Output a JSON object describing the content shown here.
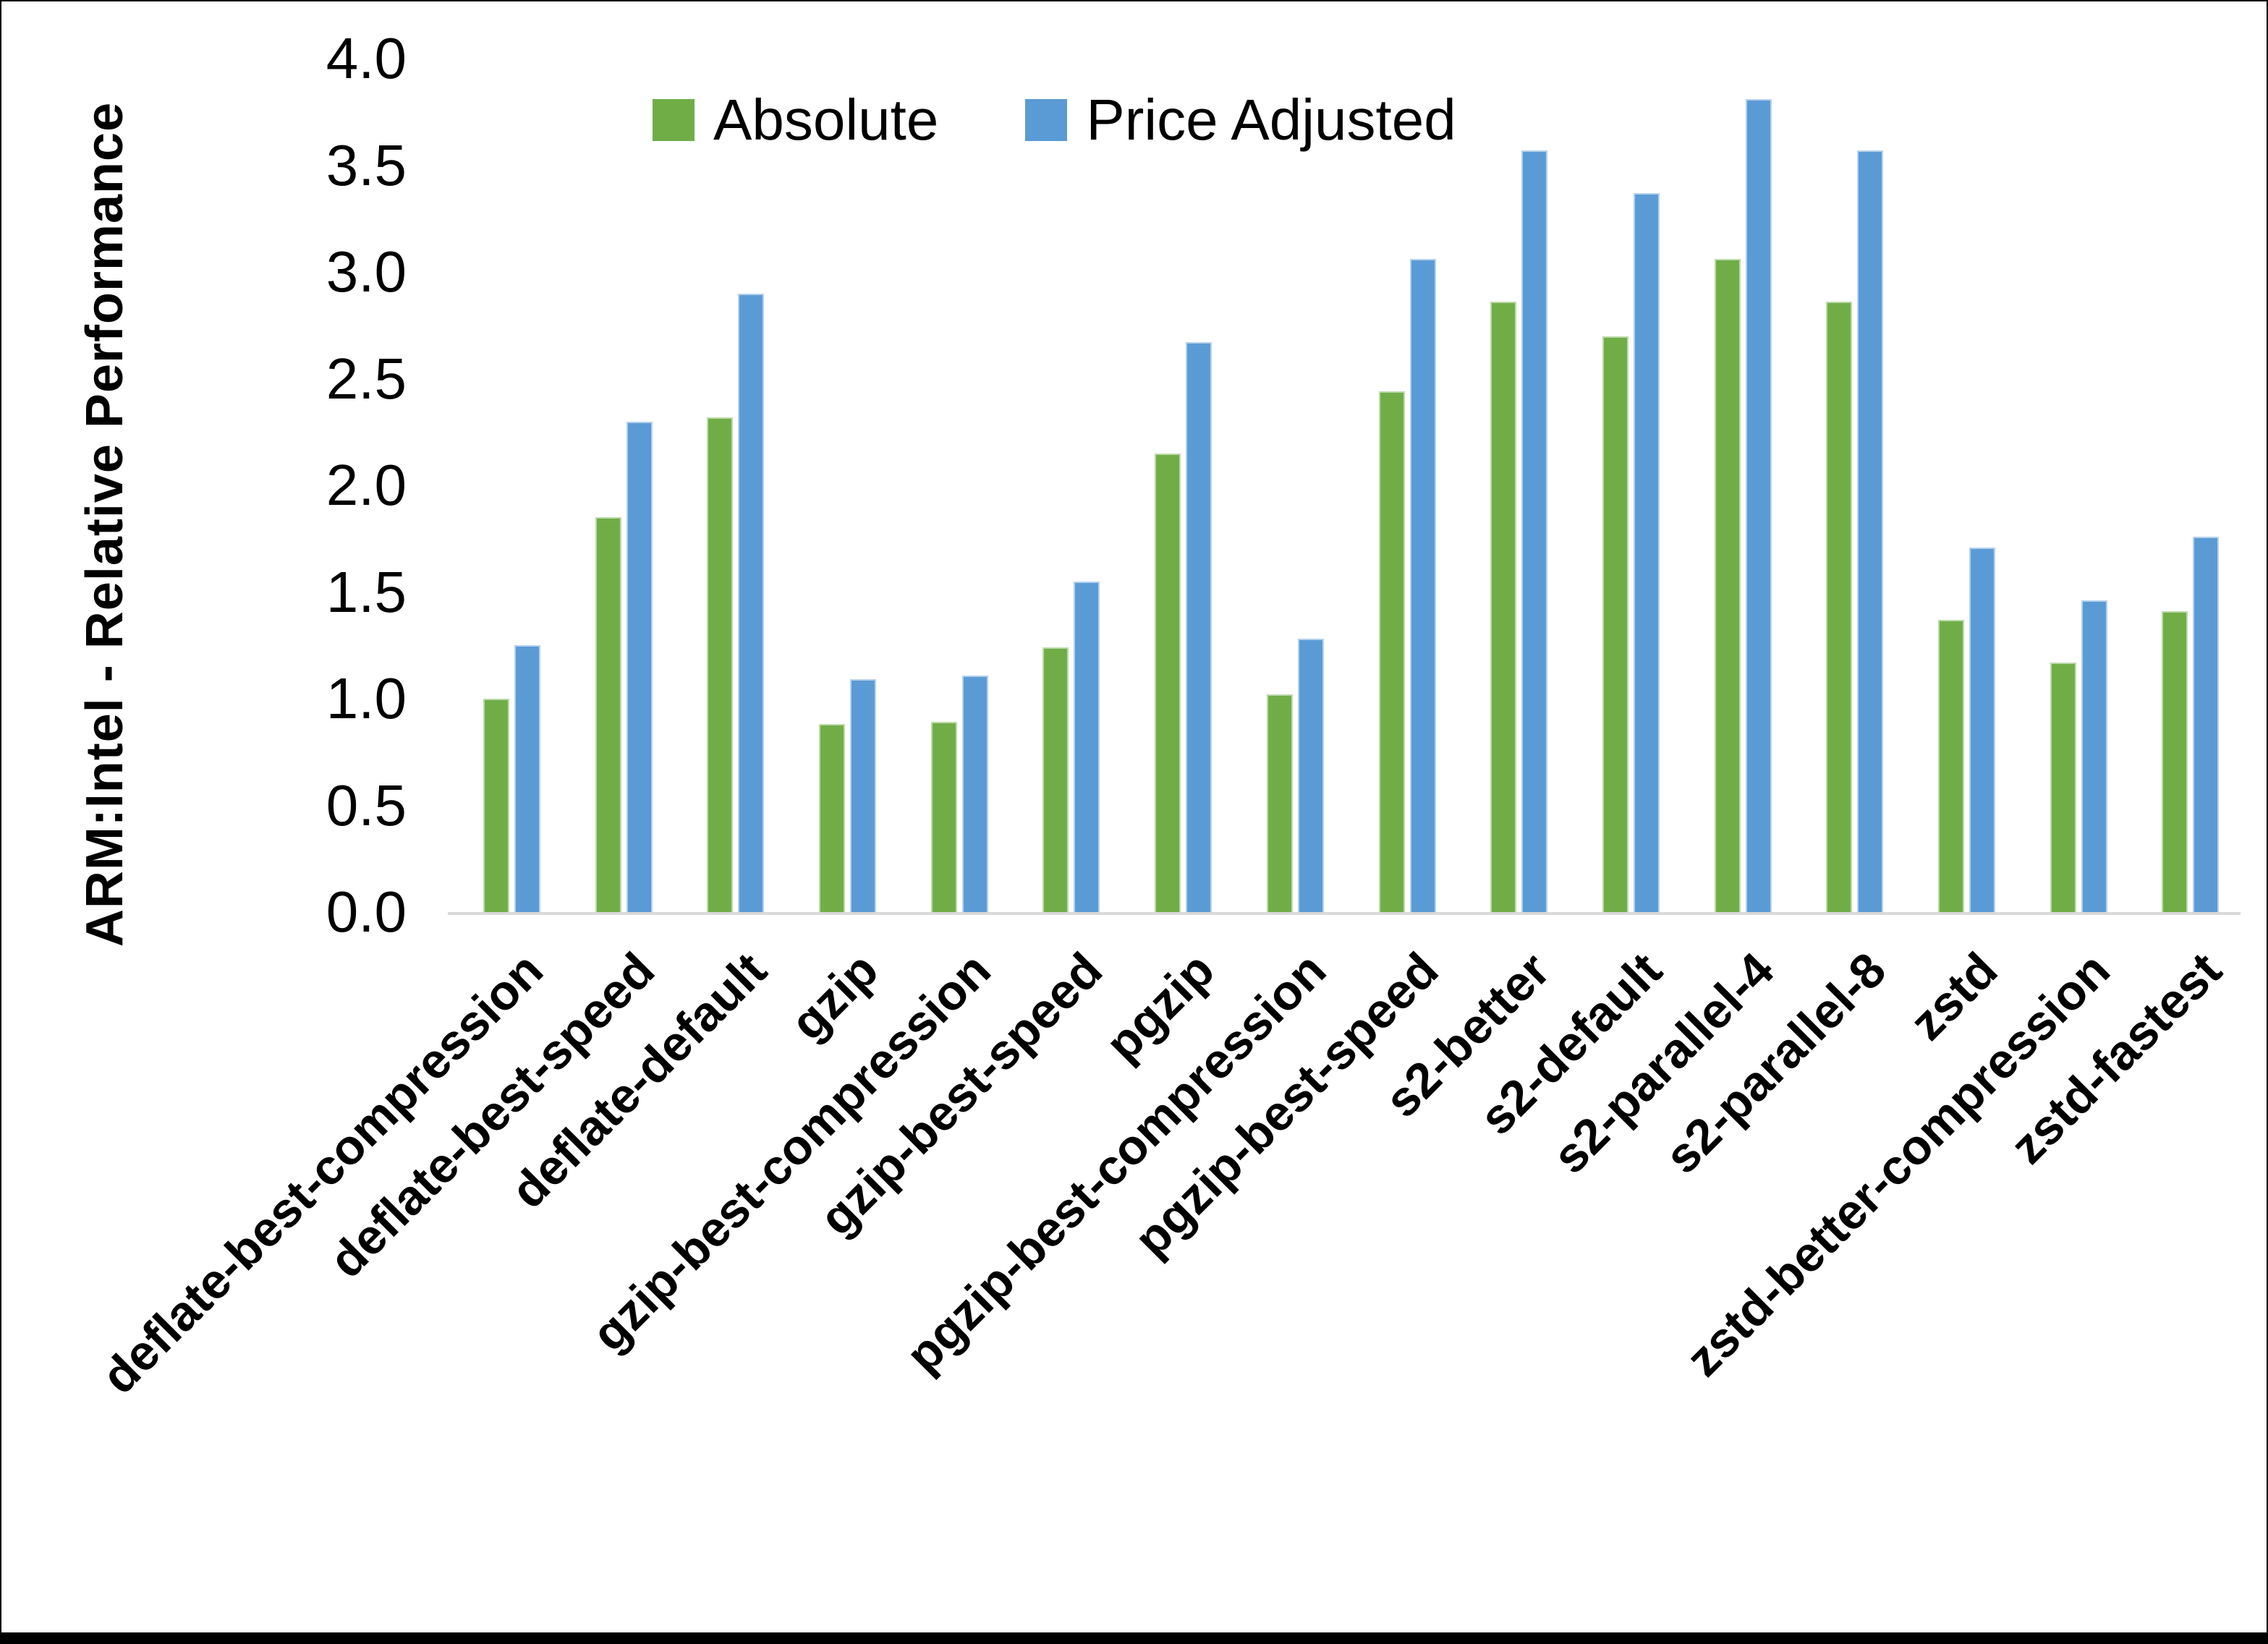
{
  "chart_data": {
    "type": "bar",
    "title": "",
    "ylabel": "ARM:Intel - Relative Performance",
    "xlabel": "",
    "ylim": [
      0.0,
      4.0
    ],
    "ytick_labels": [
      "0.0",
      "0.5",
      "1.0",
      "1.5",
      "2.0",
      "2.5",
      "3.0",
      "3.5",
      "4.0"
    ],
    "grid": false,
    "legend_position": "top-center",
    "categories": [
      "deflate-best-compression",
      "deflate-best-speed",
      "deflate-default",
      "gzip",
      "gzip-best-compression",
      "gzip-best-speed",
      "pgzip",
      "pgzip-best-compression",
      "pgzip-best-speed",
      "s2-better",
      "s2-default",
      "s2-parallel-4",
      "s2-parallel-8",
      "zstd",
      "zstd-better-compression",
      "zstd-fastest"
    ],
    "series": [
      {
        "name": "Absolute",
        "color": "#70AD47",
        "values": [
          1.0,
          1.85,
          2.32,
          0.88,
          0.89,
          1.24,
          2.15,
          1.02,
          2.44,
          2.86,
          2.7,
          3.06,
          2.86,
          1.37,
          1.17,
          1.41
        ]
      },
      {
        "name": "Price Adjusted",
        "color": "#5B9BD5",
        "values": [
          1.25,
          2.3,
          2.9,
          1.09,
          1.11,
          1.55,
          2.67,
          1.28,
          3.06,
          3.57,
          3.37,
          3.81,
          3.57,
          1.71,
          1.46,
          1.76
        ]
      }
    ]
  }
}
